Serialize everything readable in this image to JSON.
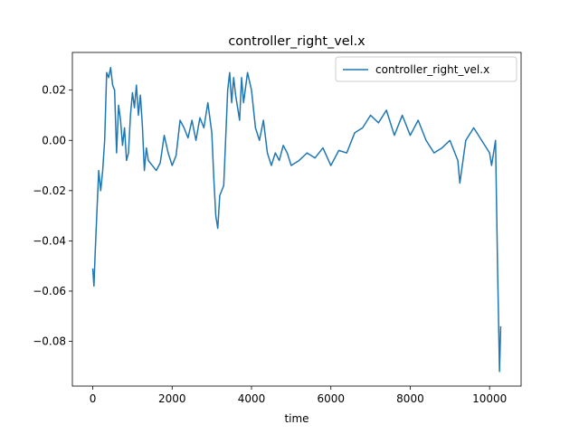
{
  "chart_data": {
    "type": "line",
    "title": "controller_right_vel.x",
    "xlabel": "time",
    "legend": "upper right",
    "xlim": [
      -514,
      10794
    ],
    "ylim": [
      -0.0978,
      0.035
    ],
    "xticks": [
      0,
      2000,
      4000,
      6000,
      8000,
      10000
    ],
    "yticks": [
      {
        "value": -0.08,
        "label": "−0.08"
      },
      {
        "value": -0.06,
        "label": "−0.06"
      },
      {
        "value": -0.04,
        "label": "−0.04"
      },
      {
        "value": -0.02,
        "label": "−0.02"
      },
      {
        "value": 0,
        "label": "0.00"
      },
      {
        "value": 0.02,
        "label": "0.02"
      }
    ],
    "x": [
      0,
      30,
      60,
      100,
      150,
      200,
      250,
      300,
      350,
      400,
      450,
      500,
      550,
      600,
      650,
      700,
      750,
      800,
      850,
      900,
      950,
      1000,
      1050,
      1100,
      1150,
      1200,
      1250,
      1300,
      1350,
      1400,
      1500,
      1600,
      1700,
      1800,
      1900,
      2000,
      2100,
      2200,
      2300,
      2400,
      2500,
      2600,
      2700,
      2800,
      2900,
      3000,
      3050,
      3100,
      3150,
      3200,
      3300,
      3400,
      3450,
      3500,
      3550,
      3600,
      3700,
      3750,
      3800,
      3900,
      4000,
      4100,
      4200,
      4300,
      4400,
      4500,
      4600,
      4700,
      4800,
      4900,
      5000,
      5200,
      5400,
      5600,
      5800,
      6000,
      6200,
      6400,
      6600,
      6800,
      7000,
      7200,
      7400,
      7600,
      7800,
      8000,
      8200,
      8400,
      8600,
      8800,
      9000,
      9200,
      9250,
      9400,
      9600,
      9800,
      10000,
      10050,
      10100,
      10150,
      10200,
      10250,
      10280
    ],
    "series": [
      {
        "name": "controller_right_vel.x",
        "color": "#1f77b4",
        "values": [
          -0.051,
          -0.058,
          -0.045,
          -0.03,
          -0.012,
          -0.02,
          -0.012,
          0.0,
          0.027,
          0.025,
          0.029,
          0.022,
          0.02,
          -0.005,
          0.014,
          0.008,
          -0.002,
          0.005,
          -0.008,
          -0.005,
          0.01,
          0.019,
          0.013,
          0.022,
          0.01,
          0.018,
          0.006,
          -0.012,
          -0.003,
          -0.008,
          -0.01,
          -0.012,
          -0.009,
          0.002,
          -0.005,
          -0.01,
          -0.006,
          0.008,
          0.005,
          0.001,
          0.008,
          0.0,
          0.009,
          0.005,
          0.015,
          0.003,
          -0.015,
          -0.03,
          -0.035,
          -0.022,
          -0.018,
          0.02,
          0.027,
          0.015,
          0.025,
          0.018,
          0.008,
          0.025,
          0.015,
          0.027,
          0.02,
          0.005,
          0.0,
          0.008,
          -0.005,
          -0.01,
          -0.005,
          -0.008,
          -0.002,
          -0.005,
          -0.01,
          -0.008,
          -0.005,
          -0.007,
          -0.003,
          -0.01,
          -0.004,
          -0.005,
          0.003,
          0.005,
          0.01,
          0.007,
          0.012,
          0.002,
          0.01,
          0.002,
          0.008,
          0.0,
          -0.005,
          -0.003,
          0.0,
          -0.008,
          -0.017,
          0.0,
          0.005,
          0.0,
          -0.005,
          -0.01,
          -0.005,
          0.0,
          -0.05,
          -0.092,
          -0.074
        ]
      }
    ]
  }
}
